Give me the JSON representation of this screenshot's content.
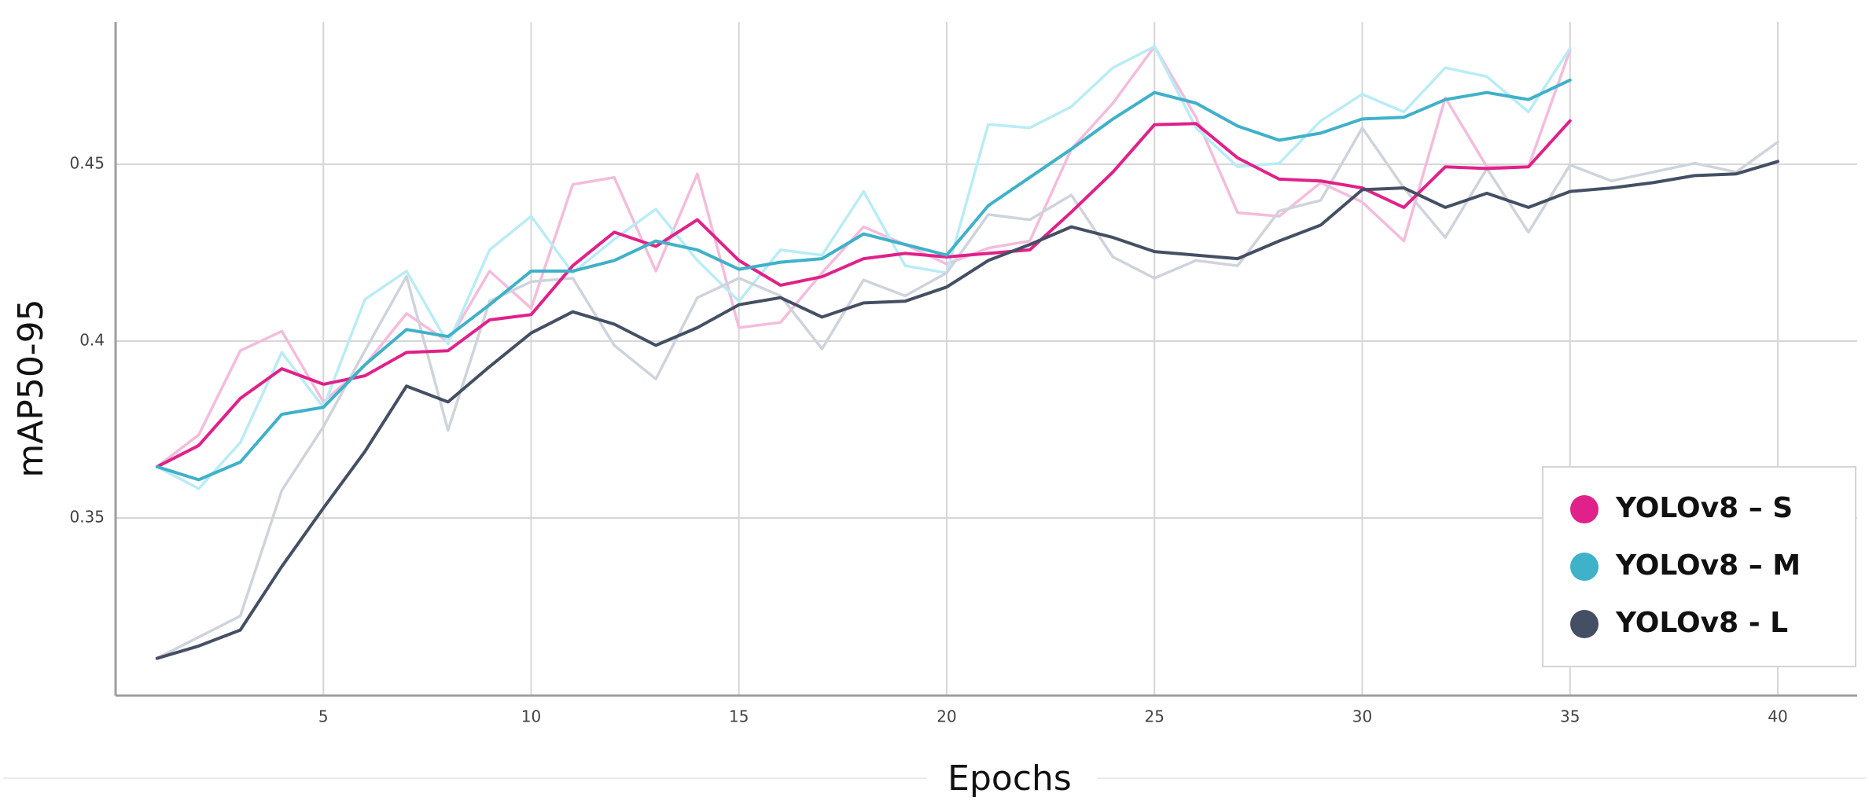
{
  "chart_data": {
    "type": "line",
    "title": "",
    "xlabel": "Epochs",
    "ylabel": "mAP50-95",
    "xlim": [
      0,
      42
    ],
    "ylim": [
      0.3,
      0.49
    ],
    "x_ticks": [
      "5",
      "10",
      "15",
      "20",
      "25",
      "30",
      "35",
      "40"
    ],
    "y_ticks": [
      "0.35",
      "0.4",
      "0.45"
    ],
    "grid": true,
    "legend": {
      "position": "bottom-right",
      "marker": "circle"
    },
    "series": [
      {
        "name": "YOLOv8 – S",
        "color": "#e0218a",
        "raw_color": "#f4bcdc",
        "x": [
          1,
          2,
          3,
          4,
          5,
          6,
          7,
          8,
          9,
          10,
          11,
          12,
          13,
          14,
          15,
          16,
          17,
          18,
          19,
          20,
          21,
          22,
          23,
          24,
          25,
          26,
          27,
          28,
          29,
          30,
          31,
          32,
          33,
          34,
          35
        ],
        "values": [
          0.3645,
          0.3705,
          0.3838,
          0.3922,
          0.3878,
          0.3902,
          0.3968,
          0.3973,
          0.406,
          0.4075,
          0.4213,
          0.4308,
          0.4268,
          0.4343,
          0.4228,
          0.4158,
          0.4182,
          0.4233,
          0.4248,
          0.4238,
          0.4248,
          0.4258,
          0.4365,
          0.4478,
          0.4612,
          0.4615,
          0.4518,
          0.4458,
          0.4453,
          0.4433,
          0.4378,
          0.4493,
          0.4488,
          0.4493,
          0.4623
        ],
        "raw_values": [
          0.3645,
          0.3735,
          0.3973,
          0.4028,
          0.3828,
          0.3932,
          0.4078,
          0.3998,
          0.4198,
          0.4093,
          0.4443,
          0.4463,
          0.4198,
          0.4473,
          0.4038,
          0.4053,
          0.4193,
          0.4323,
          0.4273,
          0.4218,
          0.4263,
          0.4283,
          0.4543,
          0.4673,
          0.4833,
          0.4633,
          0.4363,
          0.4353,
          0.4448,
          0.4393,
          0.4283,
          0.4688,
          0.4493,
          0.4493,
          0.4823
        ]
      },
      {
        "name": "YOLOv8 – M",
        "color": "#3fb1c9",
        "raw_color": "#b9ecf6",
        "x": [
          1,
          2,
          3,
          4,
          5,
          6,
          7,
          8,
          9,
          10,
          11,
          12,
          13,
          14,
          15,
          16,
          17,
          18,
          19,
          20,
          21,
          22,
          23,
          24,
          25,
          26,
          27,
          28,
          29,
          30,
          31,
          32,
          33,
          34,
          35
        ],
        "values": [
          0.3645,
          0.3608,
          0.3658,
          0.3793,
          0.3813,
          0.3933,
          0.4033,
          0.4013,
          0.4103,
          0.4198,
          0.4198,
          0.4228,
          0.4283,
          0.4258,
          0.4203,
          0.4223,
          0.4233,
          0.4303,
          0.4273,
          0.4243,
          0.4383,
          0.4463,
          0.4543,
          0.4628,
          0.4703,
          0.4673,
          0.4608,
          0.4568,
          0.4588,
          0.4628,
          0.4633,
          0.4683,
          0.4703,
          0.4683,
          0.4738
        ],
        "raw_values": [
          0.3645,
          0.3583,
          0.3713,
          0.3968,
          0.3813,
          0.4118,
          0.4198,
          0.3993,
          0.4258,
          0.4353,
          0.4193,
          0.4288,
          0.4373,
          0.4228,
          0.4113,
          0.4258,
          0.4243,
          0.4423,
          0.4213,
          0.4193,
          0.4613,
          0.4603,
          0.4663,
          0.4773,
          0.4833,
          0.4603,
          0.4493,
          0.4503,
          0.4623,
          0.4698,
          0.4648,
          0.4773,
          0.4748,
          0.4648,
          0.4828
        ]
      },
      {
        "name": "YOLOv8 - L",
        "color": "#454f64",
        "raw_color": "#cfd3dc",
        "x": [
          1,
          2,
          3,
          4,
          5,
          6,
          7,
          8,
          9,
          10,
          11,
          12,
          13,
          14,
          15,
          16,
          17,
          18,
          19,
          20,
          21,
          22,
          23,
          24,
          25,
          26,
          27,
          28,
          29,
          30,
          31,
          32,
          33,
          34,
          35,
          36,
          37,
          38,
          39,
          40
        ],
        "values": [
          0.3103,
          0.3138,
          0.3183,
          0.3363,
          0.3528,
          0.3688,
          0.3873,
          0.3828,
          0.3928,
          0.4023,
          0.4083,
          0.4048,
          0.3988,
          0.4038,
          0.4103,
          0.4123,
          0.4068,
          0.4108,
          0.4113,
          0.4153,
          0.4228,
          0.4273,
          0.4323,
          0.4293,
          0.4253,
          0.4243,
          0.4233,
          0.4283,
          0.4328,
          0.4428,
          0.4433,
          0.4378,
          0.4418,
          0.4378,
          0.4423,
          0.4433,
          0.4448,
          0.4468,
          0.4473,
          0.4508
        ],
        "raw_values": [
          0.3103,
          0.3163,
          0.3223,
          0.3578,
          0.3758,
          0.3973,
          0.4183,
          0.3748,
          0.4113,
          0.4168,
          0.4178,
          0.3988,
          0.3893,
          0.4123,
          0.4178,
          0.4128,
          0.3978,
          0.4173,
          0.4128,
          0.4193,
          0.4358,
          0.4343,
          0.4413,
          0.4238,
          0.4178,
          0.4228,
          0.4213,
          0.4368,
          0.4398,
          0.4603,
          0.4433,
          0.4293,
          0.4488,
          0.4308,
          0.4498,
          0.4453,
          0.4478,
          0.4503,
          0.4478,
          0.4563
        ]
      }
    ]
  }
}
